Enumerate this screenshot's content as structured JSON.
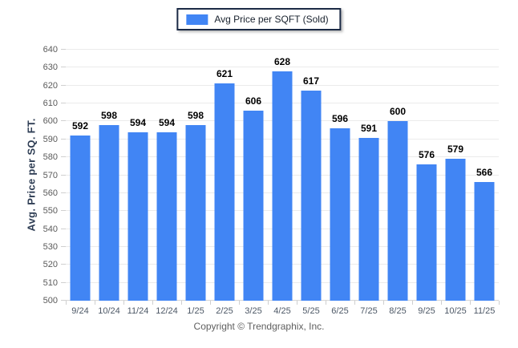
{
  "legend": {
    "label": "Avg Price per SQFT (Sold)",
    "swatch_color": "#4185f4"
  },
  "chart_data": {
    "type": "bar",
    "title": "",
    "xlabel": "",
    "ylabel": "Avg. Price per SQ. FT.",
    "categories": [
      "9/24",
      "10/24",
      "11/24",
      "12/24",
      "1/25",
      "2/25",
      "3/25",
      "4/25",
      "5/25",
      "6/25",
      "7/25",
      "8/25",
      "9/25",
      "10/25",
      "11/25"
    ],
    "values": [
      592,
      598,
      594,
      594,
      598,
      621,
      606,
      628,
      617,
      596,
      591,
      600,
      576,
      579,
      566
    ],
    "ylim": [
      500,
      640
    ],
    "ytick_step": 10,
    "grid": true,
    "legend_position": "top",
    "bar_color": "#4185f4"
  },
  "footer": {
    "copyright": "Copyright © Trendgraphix, Inc."
  },
  "colors": {
    "bar": "#4185f4",
    "gridline": "#ebebeb",
    "baseline": "#d6d6d6",
    "legend_border": "#1b2a45",
    "axis_title": "#2e3d54",
    "tick_label": "#5a5a5a",
    "xtick_label": "#4d5866",
    "value_label": "#000000",
    "footer_text": "#5f5f5f"
  }
}
